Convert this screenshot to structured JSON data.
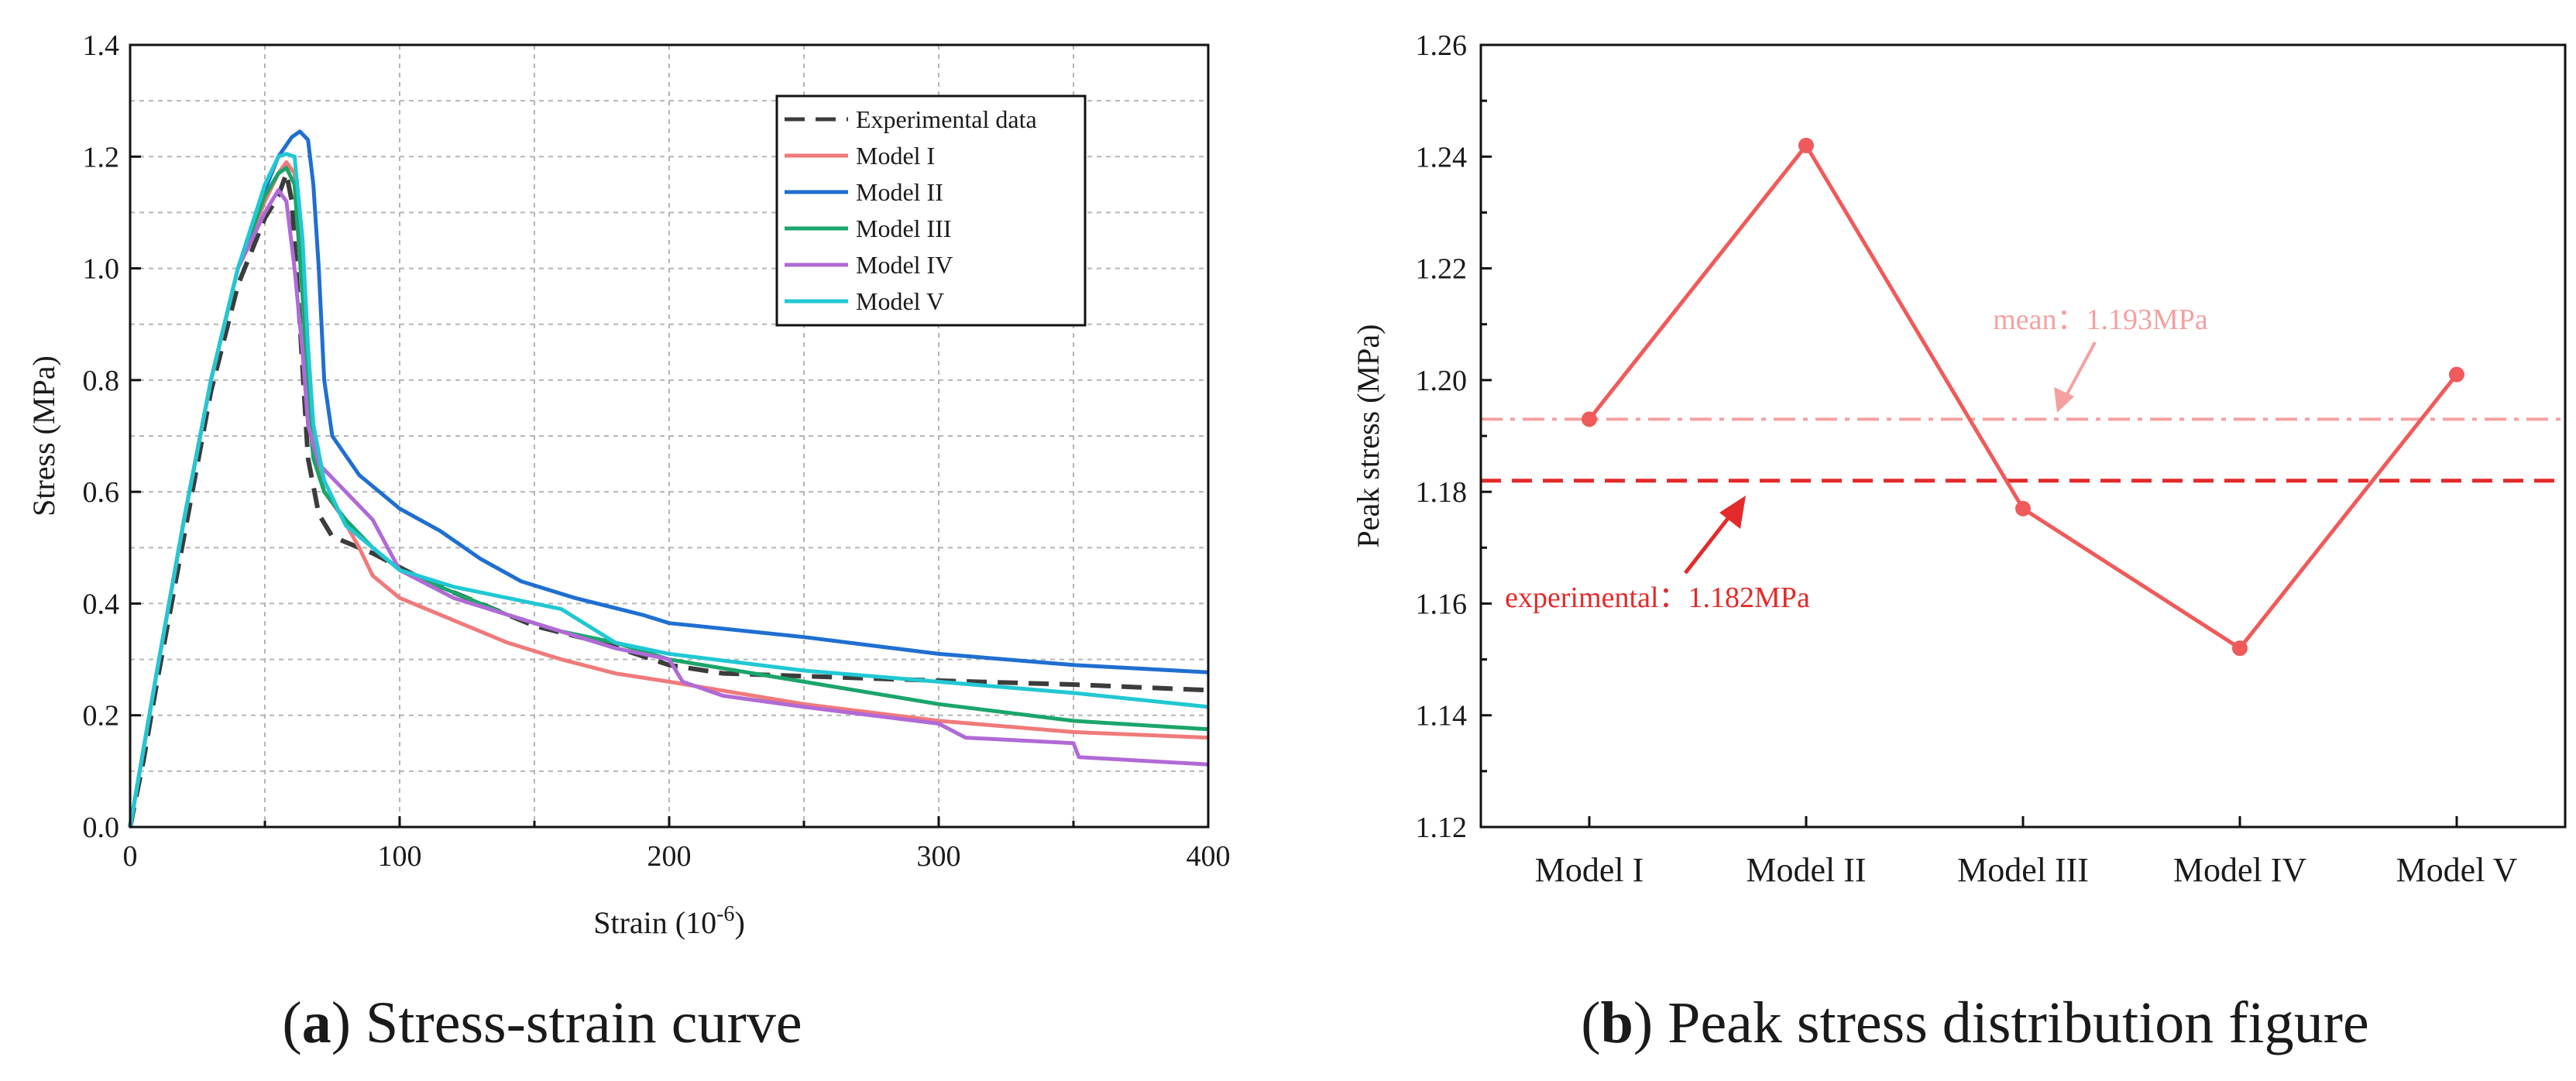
{
  "figure_captions": {
    "a": {
      "letter": "a",
      "text": "Stress-strain curve"
    },
    "b": {
      "letter": "b",
      "text": "Peak stress distribution figure"
    }
  },
  "chart_data": [
    {
      "id": "a",
      "type": "line",
      "title": "",
      "xlabel": "Strain (10",
      "xlabel_superscript": "-6",
      "xlabel_suffix": ")",
      "ylabel": "Stress (MPa)",
      "xlim": [
        0,
        400
      ],
      "ylim": [
        0,
        1.4
      ],
      "xticks": [
        0,
        100,
        200,
        300,
        400
      ],
      "yticks": [
        0.0,
        0.2,
        0.4,
        0.6,
        0.8,
        1.0,
        1.2,
        1.4
      ],
      "ytick_labels": [
        "0.0",
        "0.2",
        "0.4",
        "0.6",
        "0.8",
        "1.0",
        "1.2",
        "1.4"
      ],
      "minor_grid": [
        50,
        150,
        250,
        350
      ],
      "grid": true,
      "legend_position": "top-right",
      "series": [
        {
          "name": "Experimental data",
          "color": "#3c3c3c",
          "style": "dashed",
          "points": [
            [
              0,
              0
            ],
            [
              5,
              0.12
            ],
            [
              10,
              0.26
            ],
            [
              20,
              0.52
            ],
            [
              30,
              0.78
            ],
            [
              40,
              0.97
            ],
            [
              50,
              1.09
            ],
            [
              55,
              1.13
            ],
            [
              58,
              1.17
            ],
            [
              60,
              1.12
            ],
            [
              63,
              0.9
            ],
            [
              66,
              0.66
            ],
            [
              70,
              0.56
            ],
            [
              75,
              0.52
            ],
            [
              90,
              0.49
            ],
            [
              110,
              0.44
            ],
            [
              130,
              0.4
            ],
            [
              150,
              0.36
            ],
            [
              175,
              0.33
            ],
            [
              200,
              0.29
            ],
            [
              220,
              0.275
            ],
            [
              250,
              0.27
            ],
            [
              300,
              0.262
            ],
            [
              350,
              0.255
            ],
            [
              400,
              0.245
            ]
          ]
        },
        {
          "name": "Model I",
          "color": "#f07a7a",
          "style": "solid",
          "points": [
            [
              0,
              0
            ],
            [
              10,
              0.28
            ],
            [
              20,
              0.55
            ],
            [
              30,
              0.8
            ],
            [
              40,
              1.0
            ],
            [
              50,
              1.12
            ],
            [
              55,
              1.17
            ],
            [
              58,
              1.19
            ],
            [
              61,
              1.17
            ],
            [
              64,
              1.02
            ],
            [
              66,
              0.82
            ],
            [
              68,
              0.68
            ],
            [
              72,
              0.6
            ],
            [
              78,
              0.56
            ],
            [
              85,
              0.5
            ],
            [
              90,
              0.45
            ],
            [
              100,
              0.41
            ],
            [
              120,
              0.37
            ],
            [
              140,
              0.33
            ],
            [
              160,
              0.3
            ],
            [
              180,
              0.275
            ],
            [
              200,
              0.26
            ],
            [
              250,
              0.22
            ],
            [
              300,
              0.19
            ],
            [
              350,
              0.17
            ],
            [
              400,
              0.16
            ]
          ]
        },
        {
          "name": "Model II",
          "color": "#1f6fd0",
          "style": "solid",
          "points": [
            [
              0,
              0
            ],
            [
              10,
              0.28
            ],
            [
              20,
              0.55
            ],
            [
              30,
              0.8
            ],
            [
              40,
              1.0
            ],
            [
              50,
              1.14
            ],
            [
              55,
              1.2
            ],
            [
              60,
              1.235
            ],
            [
              63,
              1.245
            ],
            [
              66,
              1.23
            ],
            [
              68,
              1.15
            ],
            [
              70,
              1.0
            ],
            [
              72,
              0.8
            ],
            [
              75,
              0.7
            ],
            [
              85,
              0.63
            ],
            [
              100,
              0.57
            ],
            [
              115,
              0.53
            ],
            [
              130,
              0.48
            ],
            [
              145,
              0.44
            ],
            [
              165,
              0.41
            ],
            [
              190,
              0.38
            ],
            [
              200,
              0.365
            ],
            [
              250,
              0.34
            ],
            [
              300,
              0.31
            ],
            [
              350,
              0.29
            ],
            [
              400,
              0.277
            ]
          ]
        },
        {
          "name": "Model III",
          "color": "#1aa56a",
          "style": "solid",
          "points": [
            [
              0,
              0
            ],
            [
              10,
              0.28
            ],
            [
              20,
              0.55
            ],
            [
              30,
              0.8
            ],
            [
              40,
              1.0
            ],
            [
              50,
              1.13
            ],
            [
              55,
              1.17
            ],
            [
              58,
              1.18
            ],
            [
              61,
              1.15
            ],
            [
              64,
              0.95
            ],
            [
              66,
              0.76
            ],
            [
              68,
              0.66
            ],
            [
              72,
              0.6
            ],
            [
              80,
              0.55
            ],
            [
              90,
              0.5
            ],
            [
              100,
              0.46
            ],
            [
              120,
              0.42
            ],
            [
              140,
              0.38
            ],
            [
              160,
              0.35
            ],
            [
              180,
              0.33
            ],
            [
              200,
              0.3
            ],
            [
              250,
              0.26
            ],
            [
              300,
              0.22
            ],
            [
              350,
              0.19
            ],
            [
              400,
              0.175
            ]
          ]
        },
        {
          "name": "Model IV",
          "color": "#b06ad6",
          "style": "solid",
          "points": [
            [
              0,
              0
            ],
            [
              10,
              0.28
            ],
            [
              20,
              0.55
            ],
            [
              30,
              0.8
            ],
            [
              40,
              1.0
            ],
            [
              50,
              1.1
            ],
            [
              55,
              1.14
            ],
            [
              58,
              1.12
            ],
            [
              61,
              1.0
            ],
            [
              64,
              0.85
            ],
            [
              66,
              0.72
            ],
            [
              70,
              0.65
            ],
            [
              80,
              0.6
            ],
            [
              90,
              0.55
            ],
            [
              100,
              0.46
            ],
            [
              120,
              0.41
            ],
            [
              140,
              0.38
            ],
            [
              160,
              0.35
            ],
            [
              180,
              0.32
            ],
            [
              200,
              0.3
            ],
            [
              205,
              0.26
            ],
            [
              220,
              0.235
            ],
            [
              250,
              0.215
            ],
            [
              300,
              0.185
            ],
            [
              310,
              0.16
            ],
            [
              350,
              0.15
            ],
            [
              352,
              0.125
            ],
            [
              400,
              0.112
            ]
          ]
        },
        {
          "name": "Model V",
          "color": "#21c8d2",
          "style": "solid",
          "points": [
            [
              0,
              0
            ],
            [
              10,
              0.28
            ],
            [
              20,
              0.55
            ],
            [
              30,
              0.8
            ],
            [
              40,
              1.0
            ],
            [
              50,
              1.15
            ],
            [
              55,
              1.2
            ],
            [
              58,
              1.205
            ],
            [
              61,
              1.2
            ],
            [
              64,
              1.05
            ],
            [
              66,
              0.86
            ],
            [
              68,
              0.72
            ],
            [
              72,
              0.62
            ],
            [
              80,
              0.54
            ],
            [
              90,
              0.5
            ],
            [
              100,
              0.46
            ],
            [
              120,
              0.43
            ],
            [
              140,
              0.41
            ],
            [
              160,
              0.39
            ],
            [
              180,
              0.33
            ],
            [
              200,
              0.31
            ],
            [
              250,
              0.28
            ],
            [
              300,
              0.26
            ],
            [
              350,
              0.24
            ],
            [
              400,
              0.215
            ]
          ]
        }
      ]
    },
    {
      "id": "b",
      "type": "line",
      "title": "",
      "xlabel": "",
      "ylabel": "Peak stress (MPa)",
      "categories": [
        "Model I",
        "Model II",
        "Model III",
        "Model IV",
        "Model V"
      ],
      "values": [
        1.193,
        1.242,
        1.177,
        1.152,
        1.201
      ],
      "ylim": [
        1.12,
        1.26
      ],
      "yticks": [
        1.12,
        1.14,
        1.16,
        1.18,
        1.2,
        1.22,
        1.24,
        1.26
      ],
      "ytick_labels": [
        "1.12",
        "1.14",
        "1.16",
        "1.18",
        "1.20",
        "1.22",
        "1.24",
        "1.26"
      ],
      "color": "#f05a5a",
      "reference_lines": [
        {
          "label": "mean：1.193MPa",
          "value": 1.193,
          "color": "#f5a0a0",
          "style": "dashdot"
        },
        {
          "label": "experimental：1.182MPa",
          "value": 1.182,
          "color": "#e42a2a",
          "style": "dashed"
        }
      ]
    }
  ]
}
